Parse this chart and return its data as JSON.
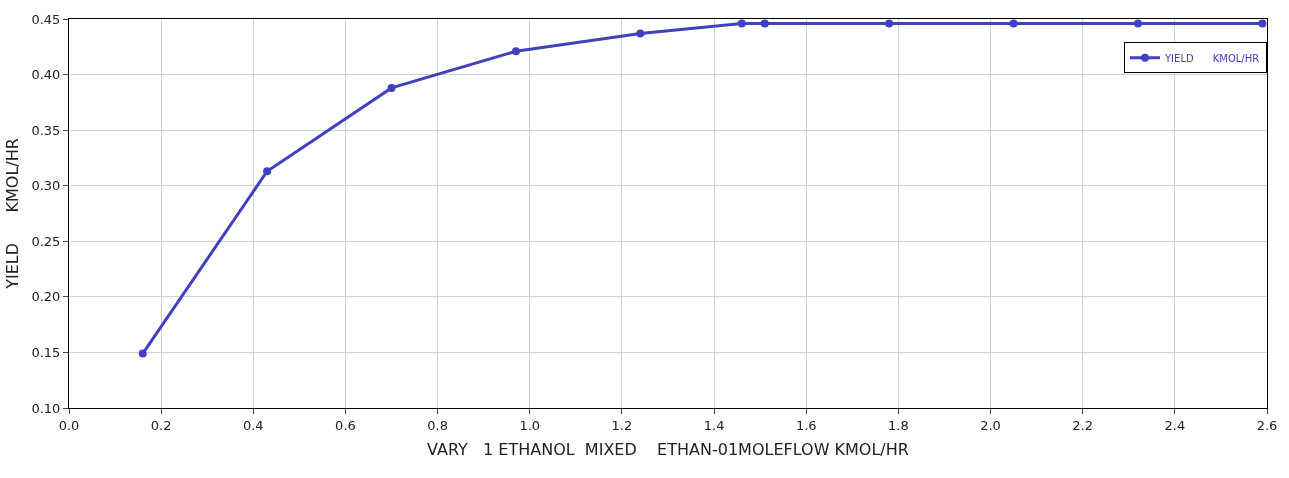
{
  "chart_data": {
    "type": "line",
    "xlabel": "VARY   1 ETHANOL  MIXED    ETHAN-01MOLEFLOW KMOL/HR",
    "ylabel": "YIELD      KMOL/HR",
    "x": [
      0.16,
      0.43,
      0.7,
      0.97,
      1.24,
      1.46,
      1.51,
      1.78,
      2.05,
      2.32,
      2.59
    ],
    "series": [
      {
        "name": "YIELD      KMOL/HR",
        "color": "#4040c0",
        "values": [
          0.149,
          0.313,
          0.388,
          0.421,
          0.437,
          0.446,
          0.446,
          0.446,
          0.446,
          0.446,
          0.446
        ]
      }
    ],
    "xlim": [
      0,
      2.6
    ],
    "xticks": [
      {
        "value": 0,
        "label": "0.0"
      },
      0.2,
      0.4,
      0.6,
      0.8,
      {
        "value": 1,
        "label": "1.0"
      },
      1.2,
      1.4,
      1.6,
      1.8,
      {
        "value": 2,
        "label": "2.0"
      },
      2.2,
      2.4,
      2.6
    ],
    "ylim": [
      0.1,
      0.45
    ],
    "yticks": [
      {
        "value": 0.1,
        "label": "0.10"
      },
      0.15,
      {
        "value": 0.2,
        "label": "0.20"
      },
      0.25,
      {
        "value": 0.3,
        "label": "0.30"
      },
      0.35,
      {
        "value": 0.4,
        "label": "0.40"
      },
      0.45
    ],
    "grid": true,
    "legend": "top right",
    "marker": "circle",
    "line_style": "solid"
  }
}
